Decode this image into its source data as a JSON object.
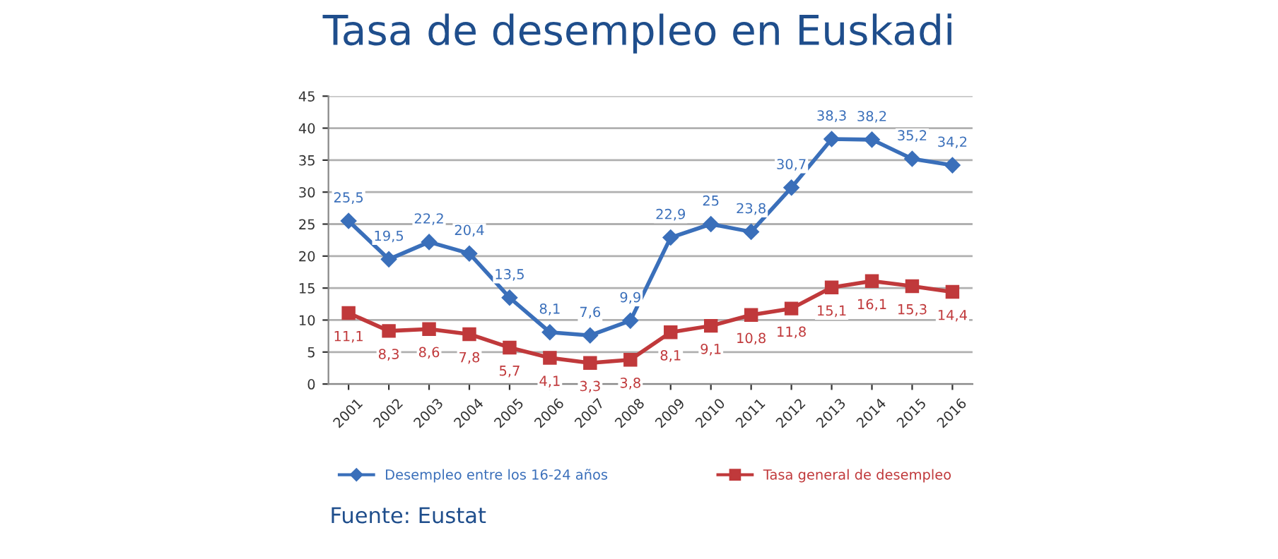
{
  "chart_data": {
    "type": "line",
    "title": "Tasa de desempleo en Euskadi",
    "categories": [
      "2001",
      "2002",
      "2003",
      "2004",
      "2005",
      "2006",
      "2007",
      "2008",
      "2009",
      "2010",
      "2011",
      "2012",
      "2013",
      "2014",
      "2015",
      "2016"
    ],
    "series": [
      {
        "name": "Desempleo entre los 16-24 años",
        "color": "#3a6fba",
        "marker": "diamond",
        "values": [
          25.5,
          19.5,
          22.2,
          20.4,
          13.5,
          8.1,
          7.6,
          9.9,
          22.9,
          25,
          23.8,
          30.7,
          38.3,
          38.2,
          35.2,
          34.2
        ],
        "value_labels": [
          "25,5",
          "19,5",
          "22,2",
          "20,4",
          "13,5",
          "8,1",
          "7,6",
          "9,9",
          "22,9",
          "25",
          "23,8",
          "30,7",
          "38,3",
          "38,2",
          "35,2",
          "34,2"
        ]
      },
      {
        "name": "Tasa general de desempleo",
        "color": "#c0393b",
        "marker": "square",
        "values": [
          11.1,
          8.3,
          8.6,
          7.8,
          5.7,
          4.1,
          3.3,
          3.8,
          8.1,
          9.1,
          10.8,
          11.8,
          15.1,
          16.1,
          15.3,
          14.4
        ],
        "value_labels": [
          "11,1",
          "8,3",
          "8,6",
          "7,8",
          "5,7",
          "4,1",
          "3,3",
          "3,8",
          "8,1",
          "9,1",
          "10,8",
          "11,8",
          "15,1",
          "16,1",
          "15,3",
          "14,4"
        ]
      }
    ],
    "ylim": [
      0,
      45
    ],
    "yticks": [
      0,
      5,
      10,
      15,
      20,
      25,
      30,
      35,
      40,
      45
    ],
    "grid": "y",
    "legend": "bottom",
    "annotations": [
      "Fuente: Eustat"
    ]
  }
}
